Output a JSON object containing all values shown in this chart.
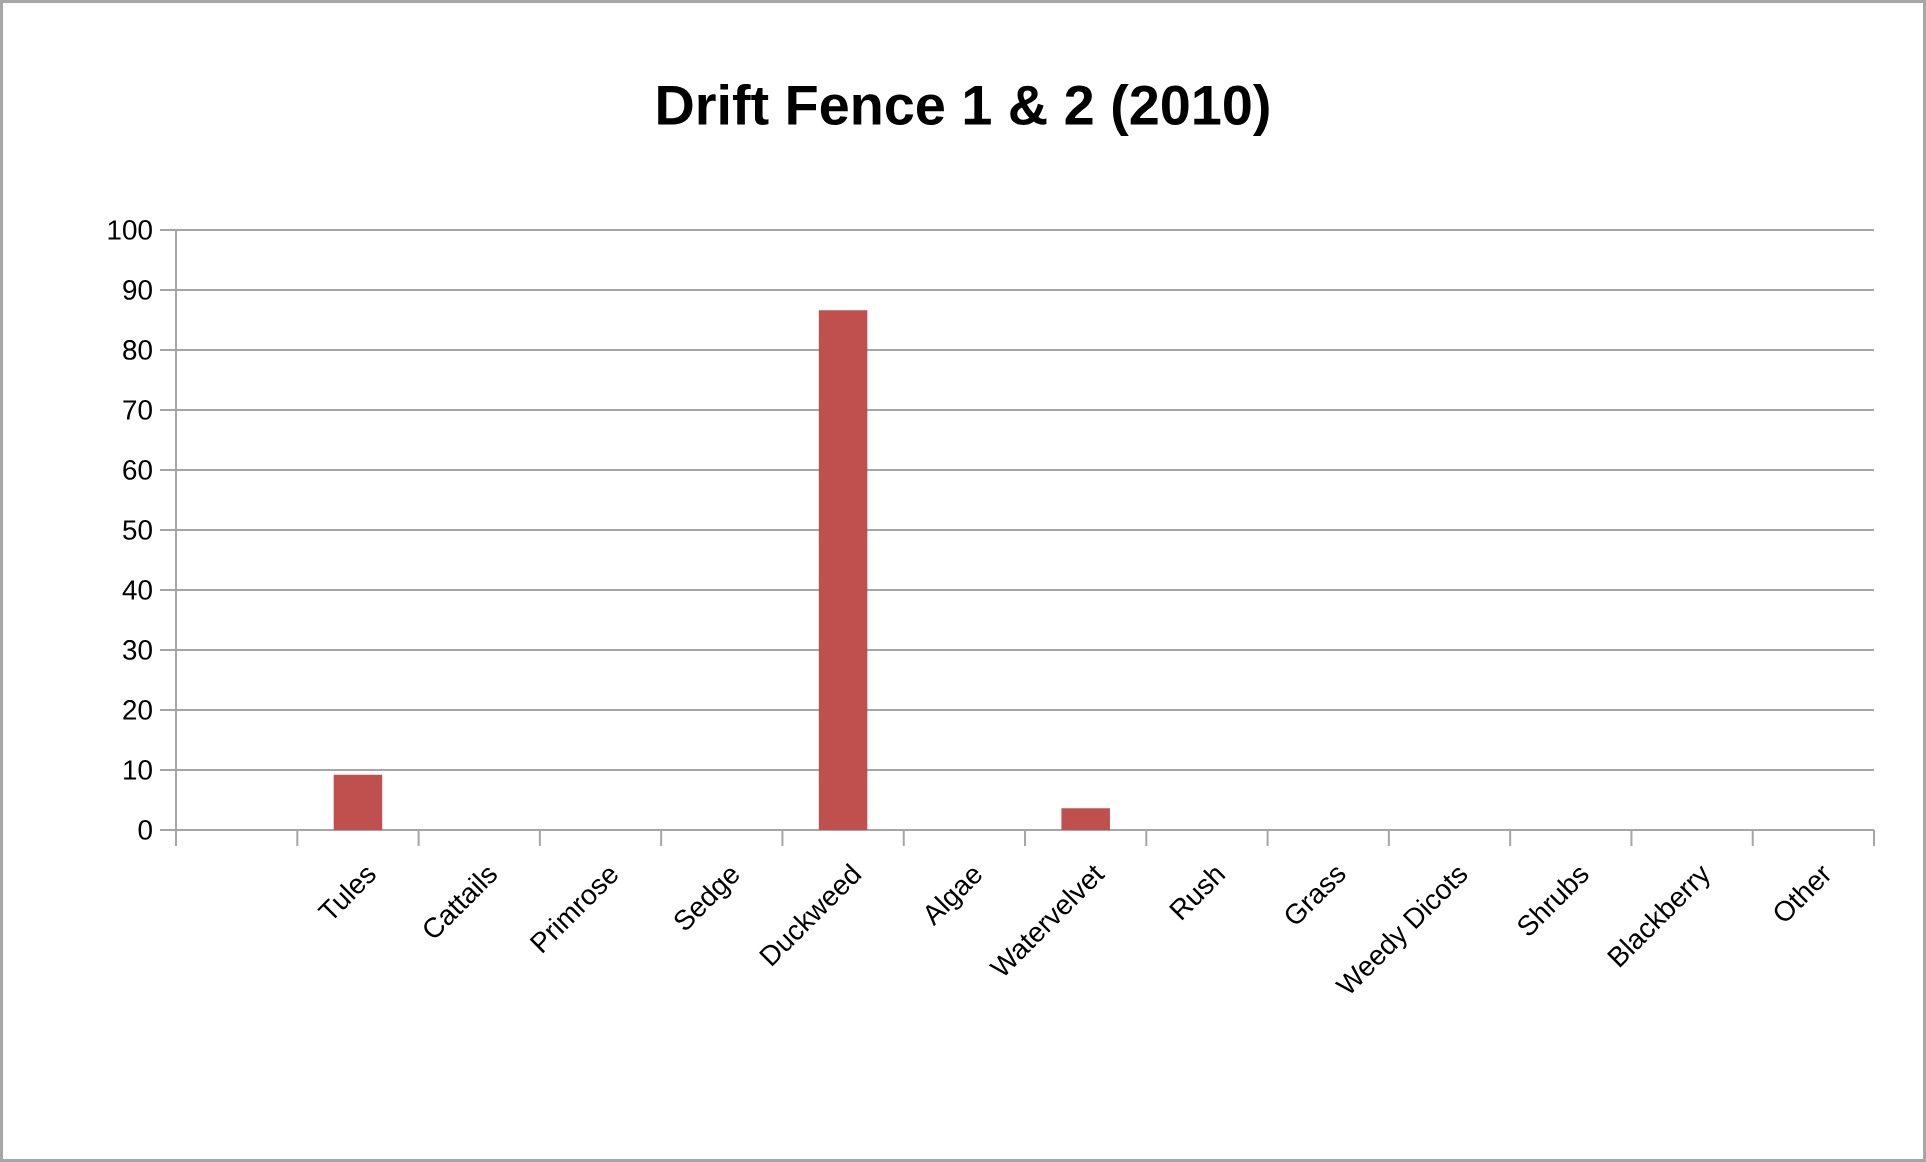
{
  "chart_data": {
    "type": "bar",
    "title": "Drift Fence 1 & 2 (2010)",
    "categories": [
      null,
      "Tules",
      "Cattails",
      "Primrose",
      "Sedge",
      "Duckweed",
      "Algae",
      "Watervelvet",
      "Rush",
      "Grass",
      "Weedy Dicots",
      "Shrubs",
      "Blackberry",
      "Other"
    ],
    "values": [
      null,
      9.2,
      0,
      0,
      0,
      86.6,
      0,
      3.6,
      0,
      0,
      0,
      0,
      0,
      0
    ],
    "color": "#c0504d",
    "ylim": [
      0,
      100
    ],
    "yticks": [
      0,
      10,
      20,
      30,
      40,
      50,
      60,
      70,
      80,
      90,
      100
    ],
    "grid": "y"
  }
}
